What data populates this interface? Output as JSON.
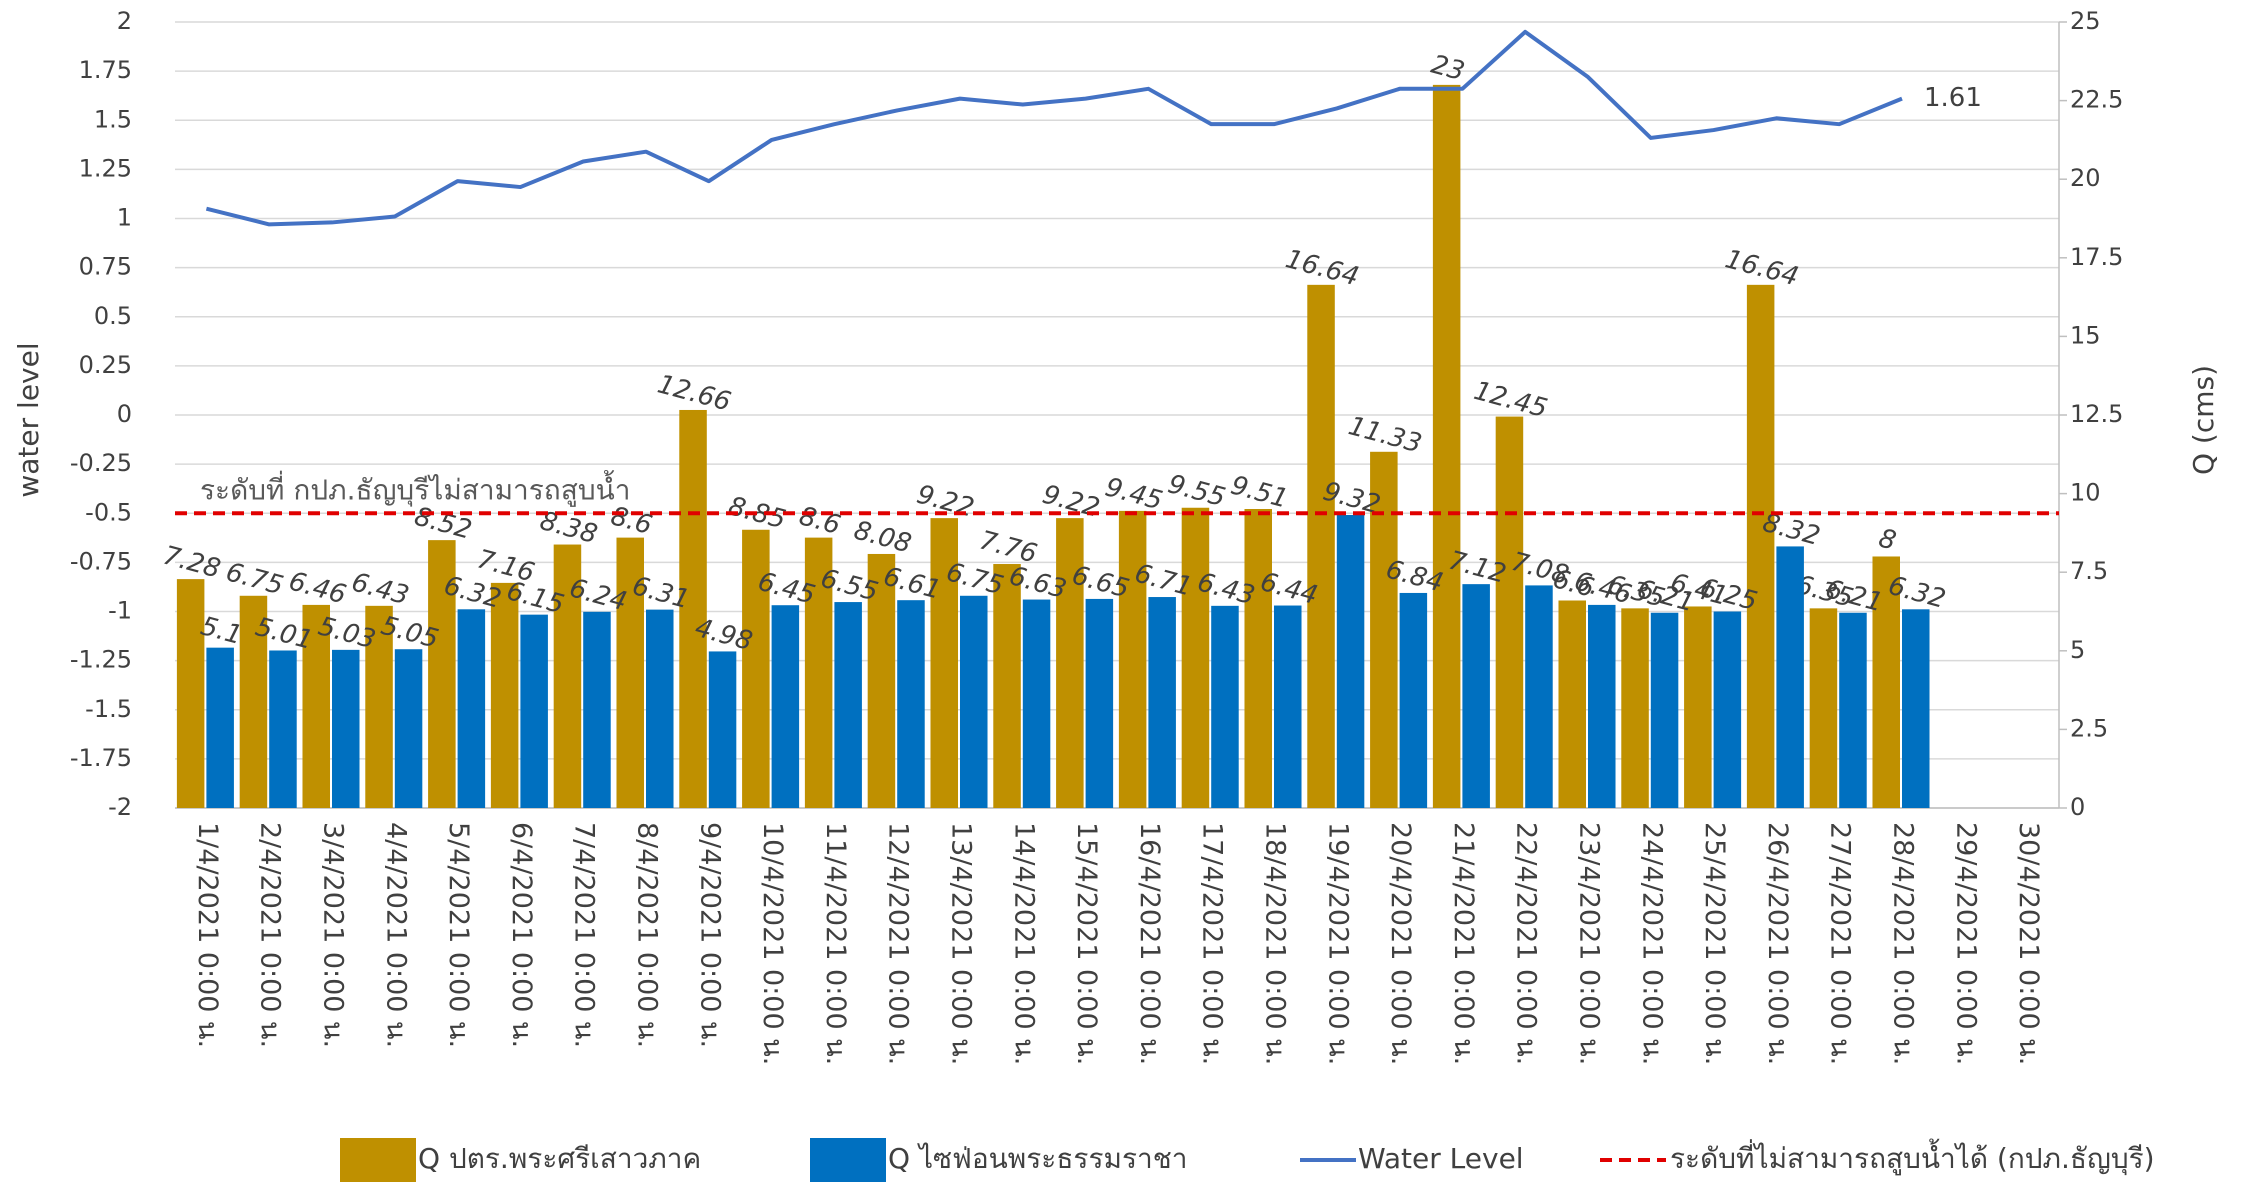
{
  "chart_data": {
    "type": "bar-line",
    "categories": [
      "1/4/2021 0:00 น.",
      "2/4/2021 0:00 น.",
      "3/4/2021 0:00 น.",
      "4/4/2021 0:00 น.",
      "5/4/2021 0:00 น.",
      "6/4/2021 0:00 น.",
      "7/4/2021 0:00 น.",
      "8/4/2021 0:00 น.",
      "9/4/2021 0:00 น.",
      "10/4/2021 0:00 น.",
      "11/4/2021 0:00 น.",
      "12/4/2021 0:00 น.",
      "13/4/2021 0:00 น.",
      "14/4/2021 0:00 น.",
      "15/4/2021 0:00 น.",
      "16/4/2021 0:00 น.",
      "17/4/2021 0:00 น.",
      "18/4/2021 0:00 น.",
      "19/4/2021 0:00 น.",
      "20/4/2021 0:00 น.",
      "21/4/2021 0:00 น.",
      "22/4/2021 0:00 น.",
      "23/4/2021 0:00 น.",
      "24/4/2021 0:00 น.",
      "25/4/2021 0:00 น.",
      "26/4/2021 0:00 น.",
      "27/4/2021 0:00 น.",
      "28/4/2021 0:00 น.",
      "29/4/2021 0:00 น.",
      "30/4/2021 0:00 น."
    ],
    "series": [
      {
        "name": "Q ปตร.พระศรีเสาวภาค",
        "color": "#bf9000",
        "kind": "bar",
        "axis": "y2",
        "data_labels": "all",
        "values": [
          7.28,
          6.75,
          6.46,
          6.43,
          8.52,
          7.16,
          8.38,
          8.6,
          12.66,
          8.85,
          8.6,
          8.08,
          9.22,
          7.76,
          9.22,
          9.45,
          9.55,
          9.51,
          16.64,
          11.33,
          23,
          12.45,
          6.6,
          6.35,
          6.41,
          16.64,
          6.35,
          8,
          null,
          null
        ]
      },
      {
        "name": "Q ไซฟ่อนพระธรรมราชา",
        "color": "#0070c0",
        "kind": "bar",
        "axis": "y2",
        "data_labels": "all",
        "values": [
          5.1,
          5.01,
          5.03,
          5.05,
          6.32,
          6.15,
          6.24,
          6.31,
          4.98,
          6.45,
          6.55,
          6.61,
          6.75,
          6.63,
          6.65,
          6.71,
          6.43,
          6.44,
          9.32,
          6.84,
          7.12,
          7.08,
          6.46,
          6.21,
          6.25,
          8.32,
          6.21,
          6.32,
          null,
          null
        ]
      },
      {
        "name": "Water Level",
        "color": "#4472c4",
        "kind": "line",
        "axis": "y",
        "data_labels": "last",
        "values": [
          1.05,
          0.97,
          0.98,
          1.01,
          1.19,
          1.16,
          1.29,
          1.34,
          1.19,
          1.4,
          1.48,
          1.55,
          1.61,
          1.58,
          1.61,
          1.66,
          1.48,
          1.48,
          1.56,
          1.66,
          1.66,
          1.95,
          1.72,
          1.41,
          1.45,
          1.51,
          1.48,
          1.61,
          null,
          null
        ]
      }
    ],
    "threshold": {
      "name": "ระดับที่ไม่สามารถสูบน้ำได้ (กปภ.ธัญบุรี)",
      "color": "#e00000",
      "value": -0.5,
      "annotation": "ระดับที่ กปภ.ธัญบุรีไม่สามารถสูบน้ำ"
    },
    "y_label": "water level",
    "y2_label": "Q (cms)",
    "ylim": [
      -2,
      2
    ],
    "yticks": [
      -2,
      -1.75,
      -1.5,
      -1.25,
      -1,
      -0.75,
      -0.5,
      -0.25,
      0,
      0.25,
      0.5,
      0.75,
      1,
      1.25,
      1.5,
      1.75,
      2
    ],
    "y2lim": [
      0,
      25
    ],
    "y2ticks": [
      0,
      2.5,
      5,
      7.5,
      10,
      12.5,
      15,
      17.5,
      20,
      22.5,
      25
    ],
    "grid": true
  }
}
